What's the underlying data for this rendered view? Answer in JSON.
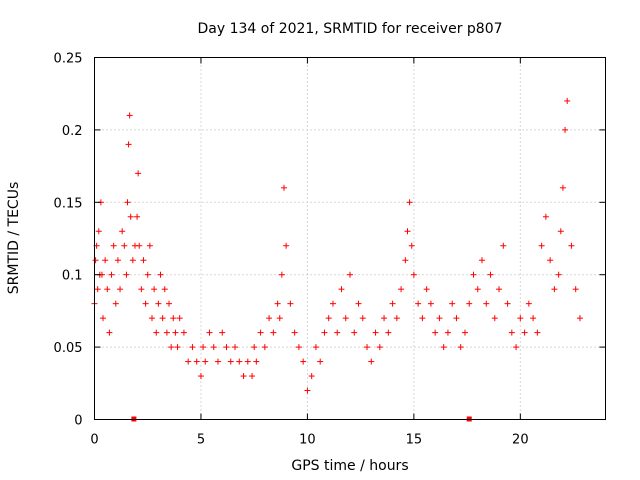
{
  "chart_data": {
    "type": "scatter",
    "title": "Day 134 of 2021, SRMTID for receiver p807",
    "xlabel": "GPS time / hours",
    "ylabel": "SRMTID / TECUs",
    "xlim": [
      0,
      24
    ],
    "ylim": [
      0,
      0.25
    ],
    "xticks": [
      0,
      5,
      10,
      15,
      20
    ],
    "yticks": [
      0,
      0.05,
      0.1,
      0.15,
      0.2,
      0.25
    ],
    "grid": true,
    "point_marker": "+",
    "point_color": "#ff0000",
    "baseline_markers_x": [
      1.85,
      17.6
    ],
    "series": [
      {
        "name": "SRMTID",
        "x": [
          0.0,
          0.05,
          0.1,
          0.15,
          0.2,
          0.25,
          0.3,
          0.35,
          0.4,
          0.5,
          0.6,
          0.7,
          0.8,
          0.9,
          1.0,
          1.1,
          1.2,
          1.3,
          1.4,
          1.5,
          1.55,
          1.6,
          1.65,
          1.7,
          1.8,
          1.9,
          2.0,
          2.05,
          2.1,
          2.2,
          2.3,
          2.4,
          2.5,
          2.6,
          2.7,
          2.8,
          2.9,
          3.0,
          3.1,
          3.2,
          3.3,
          3.4,
          3.5,
          3.6,
          3.7,
          3.8,
          3.9,
          4.0,
          4.2,
          4.4,
          4.6,
          4.8,
          5.0,
          5.1,
          5.2,
          5.4,
          5.6,
          5.8,
          6.0,
          6.2,
          6.4,
          6.6,
          6.8,
          7.0,
          7.2,
          7.4,
          7.5,
          7.6,
          7.8,
          8.0,
          8.2,
          8.4,
          8.6,
          8.7,
          8.8,
          8.9,
          9.0,
          9.2,
          9.4,
          9.6,
          9.8,
          10.0,
          10.2,
          10.4,
          10.6,
          10.8,
          11.0,
          11.2,
          11.4,
          11.6,
          11.8,
          12.0,
          12.2,
          12.4,
          12.6,
          12.8,
          13.0,
          13.2,
          13.4,
          13.6,
          13.8,
          14.0,
          14.2,
          14.4,
          14.6,
          14.7,
          14.8,
          14.9,
          15.0,
          15.2,
          15.4,
          15.6,
          15.8,
          16.0,
          16.2,
          16.4,
          16.6,
          16.8,
          17.0,
          17.2,
          17.4,
          17.6,
          17.8,
          18.0,
          18.2,
          18.4,
          18.6,
          18.8,
          19.0,
          19.2,
          19.4,
          19.6,
          19.8,
          20.0,
          20.2,
          20.4,
          20.6,
          20.8,
          21.0,
          21.2,
          21.4,
          21.6,
          21.8,
          21.9,
          22.0,
          22.1,
          22.2,
          22.4,
          22.6,
          22.8
        ],
        "y": [
          0.08,
          0.11,
          0.12,
          0.09,
          0.13,
          0.1,
          0.15,
          0.1,
          0.07,
          0.11,
          0.09,
          0.06,
          0.1,
          0.12,
          0.08,
          0.11,
          0.09,
          0.13,
          0.12,
          0.1,
          0.15,
          0.19,
          0.21,
          0.14,
          0.11,
          0.12,
          0.14,
          0.17,
          0.12,
          0.09,
          0.11,
          0.08,
          0.1,
          0.12,
          0.07,
          0.09,
          0.06,
          0.08,
          0.1,
          0.07,
          0.09,
          0.06,
          0.08,
          0.05,
          0.07,
          0.06,
          0.05,
          0.07,
          0.06,
          0.04,
          0.05,
          0.04,
          0.03,
          0.05,
          0.04,
          0.06,
          0.05,
          0.04,
          0.06,
          0.05,
          0.04,
          0.05,
          0.04,
          0.03,
          0.04,
          0.03,
          0.05,
          0.04,
          0.06,
          0.05,
          0.07,
          0.06,
          0.08,
          0.07,
          0.1,
          0.16,
          0.12,
          0.08,
          0.06,
          0.05,
          0.04,
          0.02,
          0.03,
          0.05,
          0.04,
          0.06,
          0.07,
          0.08,
          0.06,
          0.09,
          0.07,
          0.1,
          0.06,
          0.08,
          0.07,
          0.05,
          0.04,
          0.06,
          0.05,
          0.07,
          0.06,
          0.08,
          0.07,
          0.09,
          0.11,
          0.13,
          0.15,
          0.12,
          0.1,
          0.08,
          0.07,
          0.09,
          0.08,
          0.06,
          0.07,
          0.05,
          0.06,
          0.08,
          0.07,
          0.05,
          0.06,
          0.08,
          0.1,
          0.09,
          0.11,
          0.08,
          0.1,
          0.07,
          0.09,
          0.12,
          0.08,
          0.06,
          0.05,
          0.07,
          0.06,
          0.08,
          0.07,
          0.06,
          0.12,
          0.14,
          0.11,
          0.09,
          0.1,
          0.13,
          0.16,
          0.2,
          0.22,
          0.12,
          0.09,
          0.07
        ]
      }
    ]
  }
}
